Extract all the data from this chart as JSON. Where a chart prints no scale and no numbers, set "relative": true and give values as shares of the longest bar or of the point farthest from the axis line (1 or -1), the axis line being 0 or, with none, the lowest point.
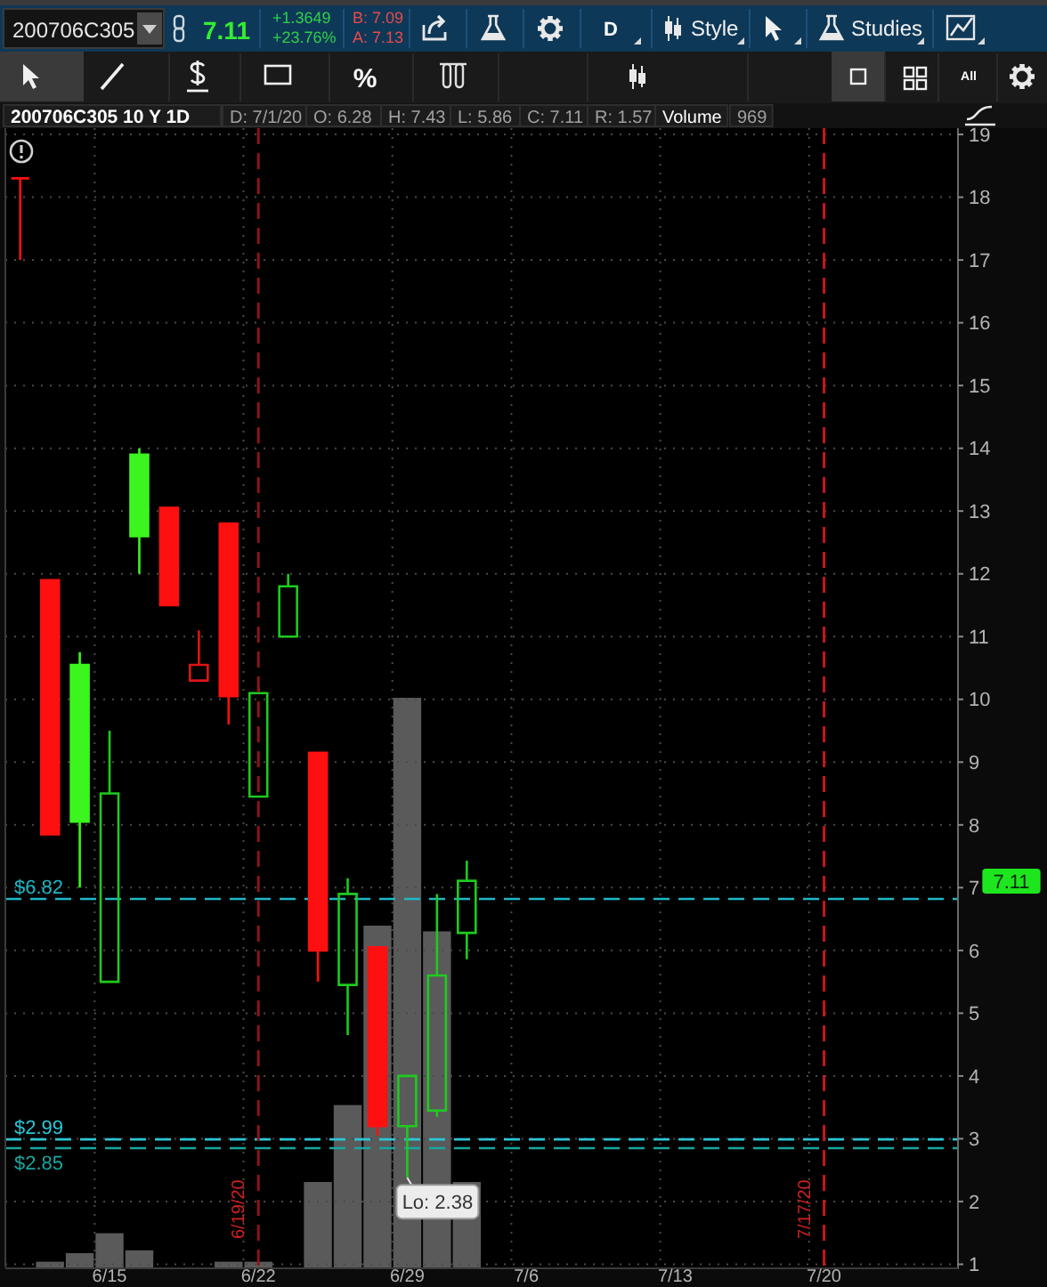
{
  "chart_data": [
    {
      "type": "candlestick",
      "title": "200706C305 10 Y 1D",
      "categories": [
        null,
        null,
        null,
        "6/15",
        null,
        null,
        null,
        null,
        "6/22",
        null,
        null,
        null,
        null,
        "6/29",
        null,
        null,
        null,
        "7/6",
        null,
        null,
        null,
        null,
        "7/13",
        null,
        null,
        null,
        null,
        "7/20",
        null,
        null,
        null,
        null
      ],
      "ohlc": [
        [
          18.3,
          18.3,
          17.0,
          18.3
        ],
        [
          11.9,
          11.9,
          7.85,
          7.85
        ],
        [
          10.55,
          10.75,
          7.0,
          8.05
        ],
        [
          5.5,
          9.5,
          5.5,
          8.5
        ],
        [
          13.9,
          14.0,
          12.0,
          12.6
        ],
        [
          13.05,
          13.05,
          11.5,
          11.5
        ],
        [
          10.3,
          11.1,
          10.3,
          10.55
        ],
        [
          12.8,
          12.8,
          9.6,
          10.05
        ],
        [
          8.45,
          10.2,
          8.45,
          10.1
        ],
        [
          11.0,
          12.0,
          11.0,
          11.8
        ],
        [
          9.15,
          9.15,
          5.5,
          6.0
        ],
        [
          5.45,
          7.15,
          4.65,
          6.9
        ],
        [
          6.05,
          6.05,
          3.05,
          3.2
        ],
        [
          3.2,
          4.0,
          2.38,
          4.0
        ],
        [
          3.45,
          6.9,
          3.35,
          5.6
        ],
        [
          6.28,
          7.43,
          5.86,
          7.11
        ],
        null,
        null,
        null,
        null,
        null,
        null,
        null,
        null,
        null,
        null,
        null,
        null,
        null,
        null,
        null,
        null
      ],
      "colors": [
        "#ff1010",
        "#ff1010",
        "#3cf51e",
        "#1ecb1e",
        "#3cf51e",
        "#ff1010",
        "#e01414",
        "#ff1010",
        "#1ecb1e",
        "#1ecb1e",
        "#ff1010",
        "#1ecb1e",
        "#ff1010",
        "#1ecb1e",
        "#1ecb1e",
        "#1ecb1e",
        null,
        null,
        null,
        null,
        null,
        null,
        null,
        null,
        null,
        null,
        null,
        null,
        null,
        null,
        null,
        null
      ],
      "ylim": [
        0.95,
        19.1
      ],
      "yticks": [
        1,
        2,
        3,
        4,
        5,
        6,
        7,
        8,
        9,
        10,
        11,
        12,
        13,
        14,
        15,
        16,
        17,
        18,
        19
      ],
      "grid": true,
      "ref_lines": [
        {
          "axis": "y",
          "value": 6.82,
          "label": "$6.82",
          "color": "#1fb8c8",
          "line_style": "dashed"
        },
        {
          "axis": "y",
          "value": 2.99,
          "label": "$2.99",
          "color": "#2cc6d6",
          "line_style": "dashed"
        },
        {
          "axis": "y",
          "value": 2.85,
          "label": "$2.85",
          "color": "#17a7a0",
          "line_style": "dashed"
        },
        {
          "axis": "x",
          "value": "6/22",
          "label": "6/19/20",
          "color": "#8c1418",
          "line_style": "dashed"
        },
        {
          "axis": "x",
          "value": "7/20",
          "label": "7/17/20",
          "color": "#c8141e",
          "line_style": "dashed"
        }
      ],
      "annotations": [
        "200706C305",
        "7.11",
        "+1.3649",
        "+23.76%",
        "B: 7.09",
        "A: 7.13",
        "D",
        "Style",
        "Studies",
        "%",
        "All",
        "D: 7/1/20",
        "O: 6.28",
        "H: 7.43",
        "L: 5.86",
        "C: 7.11",
        "R: 1.57",
        "Volume",
        "969",
        "7.11",
        {
          "text": "Lo: 2.38",
          "x": "6/29",
          "y": 2.38
        }
      ]
    },
    {
      "type": "bar",
      "relative": true,
      "color": "#5a5a5a",
      "categories": [
        null,
        null,
        null,
        null,
        null,
        null,
        null,
        null,
        null,
        null,
        null,
        null,
        null,
        null,
        null,
        null,
        null,
        null,
        null,
        null,
        null,
        null,
        null,
        null,
        null,
        null,
        null,
        null,
        null,
        null,
        null,
        null
      ],
      "values": [
        null,
        0.01,
        0.025,
        0.06,
        0.03,
        null,
        null,
        0.01,
        0.01,
        null,
        0.15,
        0.285,
        0.6,
        1,
        0.59,
        0.15,
        null,
        null,
        null,
        null,
        null,
        null,
        null,
        null,
        null,
        null,
        null,
        null,
        null,
        null,
        null,
        null
      ]
    }
  ]
}
